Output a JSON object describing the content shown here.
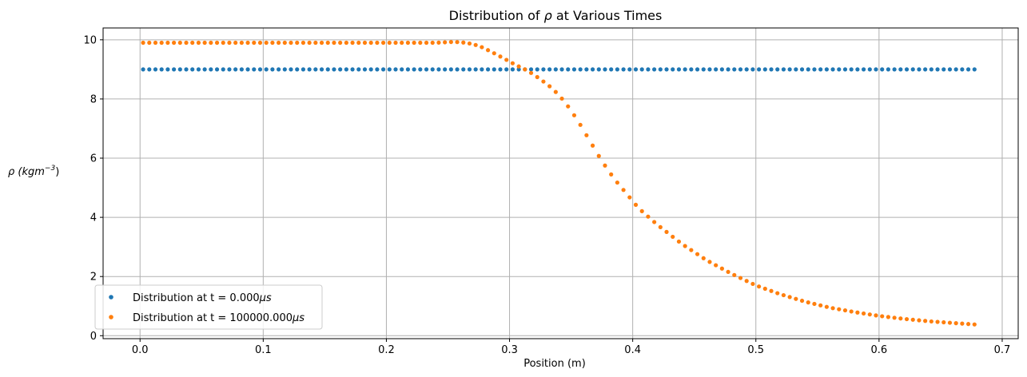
{
  "chart_data": {
    "type": "scatter",
    "title_prefix": "Distribution of ",
    "title_symbol": "ρ",
    "title_suffix": " at Various Times",
    "xlabel": "Position (m)",
    "ylabel_symbol": "ρ",
    "ylabel_unit_base": "(kgm",
    "ylabel_unit_exp": "−3",
    "ylabel_unit_close": ")",
    "xlim": [
      -0.03,
      0.713
    ],
    "ylim": [
      -0.1,
      10.4
    ],
    "xticks": [
      0.0,
      0.1,
      0.2,
      0.3,
      0.4,
      0.5,
      0.6,
      0.7
    ],
    "xtick_labels": [
      "0.0",
      "0.1",
      "0.2",
      "0.3",
      "0.4",
      "0.5",
      "0.6",
      "0.7"
    ],
    "yticks": [
      0,
      2,
      4,
      6,
      8,
      10
    ],
    "ytick_labels": [
      "0",
      "2",
      "4",
      "6",
      "8",
      "10"
    ],
    "grid": true,
    "legend_position": "lower-left",
    "x": {
      "start": 0.0025,
      "step": 0.005,
      "count": 136
    },
    "series": [
      {
        "name": "Distribution at t = 0.000μs",
        "legend_prefix": "Distribution at t = 0.000",
        "legend_unit": "μs",
        "color": "#1f77b4",
        "profile": {
          "kind": "constant",
          "value": 9.0
        }
      },
      {
        "name": "Distribution at t = 100000.000μs",
        "legend_prefix": "Distribution at t = 100000.000",
        "legend_unit": "μs",
        "color": "#ff7f0e",
        "profile": {
          "kind": "anchors",
          "anchors": [
            [
              0.0025,
              9.9
            ],
            [
              0.24,
              9.9
            ],
            [
              0.255,
              9.93
            ],
            [
              0.265,
              9.9
            ],
            [
              0.275,
              9.8
            ],
            [
              0.285,
              9.6
            ],
            [
              0.295,
              9.38
            ],
            [
              0.305,
              9.15
            ],
            [
              0.315,
              8.95
            ],
            [
              0.325,
              8.67
            ],
            [
              0.335,
              8.35
            ],
            [
              0.345,
              7.9
            ],
            [
              0.355,
              7.3
            ],
            [
              0.365,
              6.6
            ],
            [
              0.375,
              5.9
            ],
            [
              0.385,
              5.3
            ],
            [
              0.395,
              4.8
            ],
            [
              0.405,
              4.3
            ],
            [
              0.42,
              3.75
            ],
            [
              0.44,
              3.1
            ],
            [
              0.46,
              2.55
            ],
            [
              0.48,
              2.1
            ],
            [
              0.5,
              1.7
            ],
            [
              0.52,
              1.4
            ],
            [
              0.54,
              1.15
            ],
            [
              0.56,
              0.95
            ],
            [
              0.58,
              0.8
            ],
            [
              0.6,
              0.67
            ],
            [
              0.62,
              0.57
            ],
            [
              0.64,
              0.49
            ],
            [
              0.66,
              0.43
            ],
            [
              0.678,
              0.38
            ]
          ]
        }
      }
    ]
  }
}
